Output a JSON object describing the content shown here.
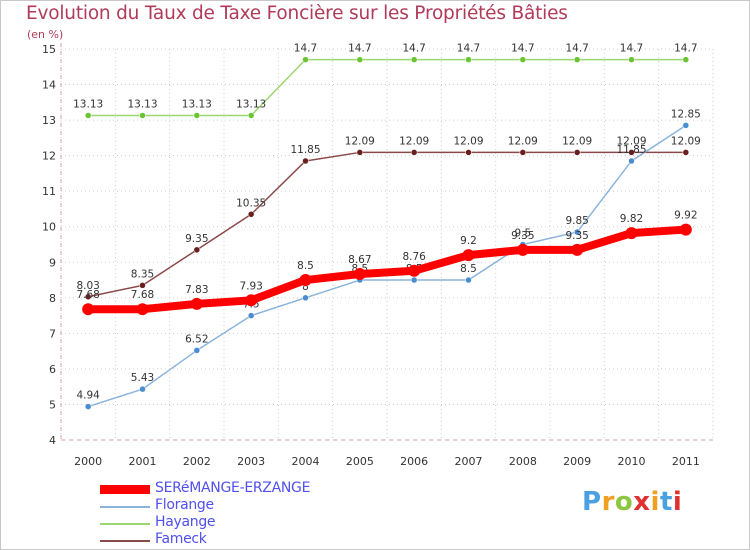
{
  "title": "Evolution du Taux de Taxe Foncière sur les Propriétés Bâties",
  "unit": "(en %)",
  "logo": "Proxiti",
  "chart_data": {
    "type": "line",
    "title": "Evolution du Taux de Taxe Foncière sur les Propriétés Bâties",
    "ylabel": "(en %)",
    "xlabel": "",
    "ylim": [
      4,
      15
    ],
    "yticks": [
      4,
      5,
      6,
      7,
      8,
      9,
      10,
      11,
      12,
      13,
      14,
      15
    ],
    "categories": [
      "2000",
      "2001",
      "2002",
      "2003",
      "2004",
      "2005",
      "2006",
      "2007",
      "2008",
      "2009",
      "2010",
      "2011"
    ],
    "series": [
      {
        "name": "Hayange",
        "color": "#9bd66f",
        "dot": "#6cc435",
        "width": 1.5,
        "r": 3,
        "values": [
          13.13,
          13.13,
          13.13,
          13.13,
          14.7,
          14.7,
          14.7,
          14.7,
          14.7,
          14.7,
          14.7,
          14.7
        ],
        "labels": [
          "13.13",
          "13.13",
          "13.13",
          "13.13",
          "14.7",
          "14.7",
          "14.7",
          "14.7",
          "14.7",
          "14.7",
          "14.7",
          "14.7"
        ]
      },
      {
        "name": "Fameck",
        "color": "#8a4a4a",
        "dot": "#6a1f1f",
        "width": 1.5,
        "r": 3,
        "values": [
          8.03,
          8.35,
          9.35,
          10.35,
          11.85,
          12.09,
          12.09,
          12.09,
          12.09,
          12.09,
          12.09,
          12.09
        ],
        "labels": [
          "8.03",
          "8.35",
          "9.35",
          "10.35",
          "11.85",
          "12.09",
          "12.09",
          "12.09",
          "12.09",
          "12.09",
          "12.09",
          "12.09"
        ]
      },
      {
        "name": "Florange",
        "color": "#8bb4dc",
        "dot": "#4a8cd0",
        "width": 1.5,
        "r": 3,
        "values": [
          4.94,
          5.43,
          6.52,
          7.5,
          8,
          8.5,
          8.5,
          8.5,
          9.5,
          9.85,
          11.85,
          12.85
        ],
        "labels": [
          "4.94",
          "5.43",
          "6.52",
          "7.5",
          "8",
          "8.5",
          "8.5",
          "8.5",
          "9.5",
          "9.85",
          "11.85",
          "12.85"
        ]
      },
      {
        "name": "SERéMANGE-ERZANGE",
        "color": "#ff0000",
        "dot": "#ff0000",
        "width": 8,
        "r": 6,
        "values": [
          7.68,
          7.68,
          7.83,
          7.93,
          8.5,
          8.67,
          8.76,
          9.2,
          9.35,
          9.35,
          9.82,
          9.92
        ],
        "labels": [
          "7.68",
          "7.68",
          "7.83",
          "7.93",
          "8.5",
          "8.67",
          "8.76",
          "9.2",
          "9.35",
          "9.35",
          "9.82",
          "9.92"
        ]
      }
    ],
    "legend": [
      "SERéMANGE-ERZANGE",
      "Florange",
      "Hayange",
      "Fameck"
    ]
  }
}
